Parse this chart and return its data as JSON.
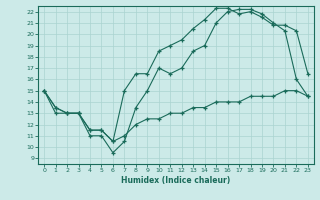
{
  "xlabel": "Humidex (Indice chaleur)",
  "ylabel": "",
  "bg_color": "#cceae8",
  "grid_color": "#aad4d0",
  "line_color": "#1a6b5a",
  "xlim": [
    -0.5,
    23.5
  ],
  "ylim": [
    8.5,
    22.5
  ],
  "xticks": [
    0,
    1,
    2,
    3,
    4,
    5,
    6,
    7,
    8,
    9,
    10,
    11,
    12,
    13,
    14,
    15,
    16,
    17,
    18,
    19,
    20,
    21,
    22,
    23
  ],
  "yticks": [
    9,
    10,
    11,
    12,
    13,
    14,
    15,
    16,
    17,
    18,
    19,
    20,
    21,
    22
  ],
  "line1_x": [
    0,
    1,
    2,
    3,
    4,
    5,
    6,
    7,
    8,
    9,
    10,
    11,
    12,
    13,
    14,
    15,
    16,
    17,
    18,
    19,
    20,
    21,
    22,
    23
  ],
  "line1_y": [
    15,
    13,
    13,
    13,
    11,
    11,
    9.5,
    10.5,
    13.5,
    15,
    17,
    16.5,
    17,
    18.5,
    19,
    21,
    22,
    22.2,
    22.2,
    21.8,
    21,
    20.3,
    16,
    14.5
  ],
  "line2_x": [
    0,
    1,
    2,
    3,
    4,
    5,
    6,
    7,
    8,
    9,
    10,
    11,
    12,
    13,
    14,
    15,
    16,
    17,
    18,
    19,
    20,
    21,
    22,
    23
  ],
  "line2_y": [
    15,
    13.5,
    13,
    13,
    11.5,
    11.5,
    10.5,
    15,
    16.5,
    16.5,
    18.5,
    19,
    19.5,
    20.5,
    21.3,
    22.3,
    22.3,
    21.8,
    22,
    21.5,
    20.8,
    20.8,
    20.3,
    16.5
  ],
  "line3_x": [
    0,
    1,
    2,
    3,
    4,
    5,
    6,
    7,
    8,
    9,
    10,
    11,
    12,
    13,
    14,
    15,
    16,
    17,
    18,
    19,
    20,
    21,
    22,
    23
  ],
  "line3_y": [
    15,
    13.5,
    13,
    13,
    11.5,
    11.5,
    10.5,
    11,
    12,
    12.5,
    12.5,
    13,
    13,
    13.5,
    13.5,
    14,
    14,
    14,
    14.5,
    14.5,
    14.5,
    15,
    15,
    14.5
  ]
}
